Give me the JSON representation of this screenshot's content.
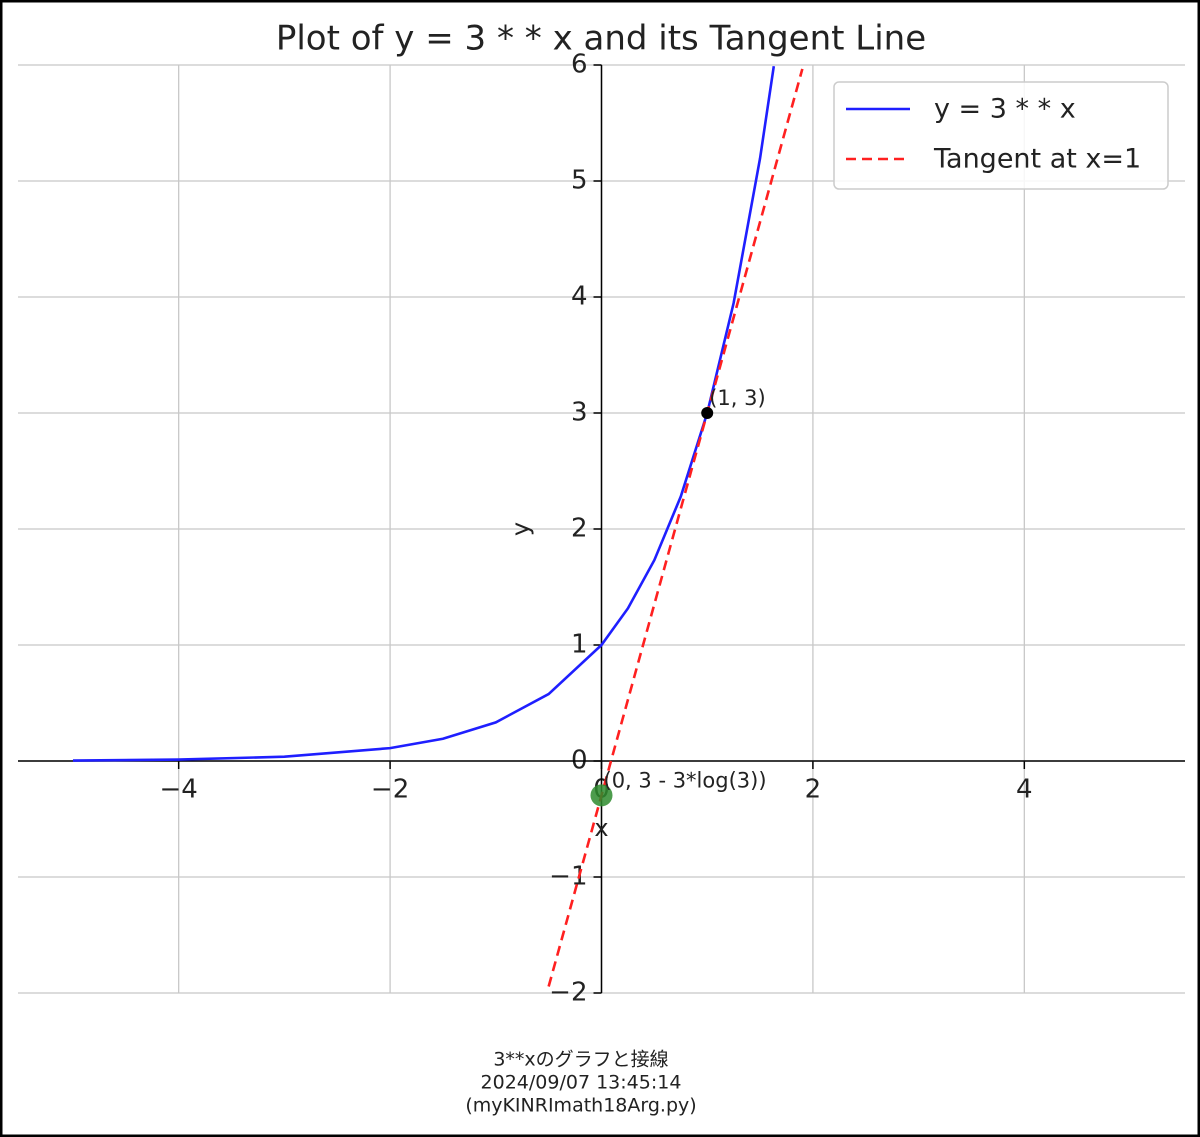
{
  "chart_data": {
    "type": "line",
    "title": "Plot of y = 3 * * x and its Tangent Line",
    "xlabel": "x",
    "ylabel": "y",
    "xlim": [
      -5.52,
      5.52
    ],
    "ylim": [
      -2,
      6
    ],
    "xticks": [
      {
        "value": -4,
        "label": "−4"
      },
      {
        "value": -2,
        "label": "−2"
      },
      0,
      2,
      4
    ],
    "yticks": [
      {
        "value": -2,
        "label": "−2"
      },
      {
        "value": -1,
        "label": "−1"
      },
      0,
      1,
      2,
      3,
      4,
      5,
      6
    ],
    "grid": true,
    "legend": "upper right",
    "series": [
      {
        "name": "y = 3 * * x",
        "color": "#1f1fff",
        "style": "solid",
        "x": [
          -5,
          -4,
          -3,
          -2,
          -1.5,
          -1,
          -0.5,
          0,
          0.25,
          0.5,
          0.75,
          1,
          1.25,
          1.5,
          1.63
        ],
        "values": [
          0.0041,
          0.0123,
          0.037,
          0.111,
          0.192,
          0.333,
          0.577,
          1,
          1.316,
          1.732,
          2.28,
          3,
          3.948,
          5.196,
          5.99
        ]
      },
      {
        "name": "Tangent at x=1",
        "color": "#ff2020",
        "style": "dashed",
        "x": [
          -0.5,
          1.9
        ],
        "values": [
          -1.944,
          5.966
        ]
      }
    ],
    "points": [
      {
        "x": 1,
        "y": 3,
        "label": "(1, 3)",
        "color": "#000000"
      },
      {
        "x": 0,
        "y": -0.296,
        "label": "(0, 3 - 3*log(3))",
        "color": "#2e8b2e"
      }
    ],
    "footer": [
      "3**xのグラフと接線",
      "2024/09/07 13:45:14",
      "(myKINRImath18Arg.py)"
    ]
  }
}
